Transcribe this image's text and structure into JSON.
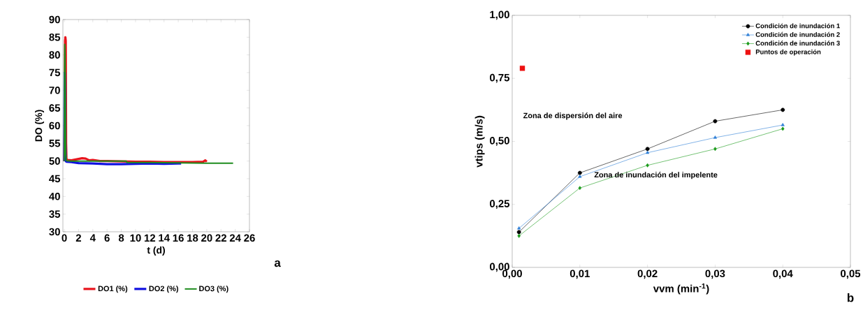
{
  "chart_data": [
    {
      "type": "line",
      "xlabel": "t (d)",
      "ylabel": "DO (%)",
      "xlim": [
        -0.2,
        26
      ],
      "ylim": [
        30,
        90
      ],
      "xticks": [
        0,
        2,
        4,
        6,
        8,
        10,
        12,
        14,
        16,
        18,
        20,
        22,
        24,
        26
      ],
      "yticks": [
        30,
        35,
        40,
        45,
        50,
        55,
        60,
        65,
        70,
        75,
        80,
        85,
        90
      ],
      "legend": "bottom",
      "marker": "none",
      "annotations": [
        "a"
      ],
      "series": [
        {
          "name": "DO1 (%)",
          "color": "#e8141c",
          "x": [
            0,
            0.05,
            0.1,
            0.15,
            0.2,
            0.25,
            0.3,
            0.5,
            1,
            1.5,
            2,
            2.5,
            3,
            3.5,
            4,
            5,
            6,
            8,
            10,
            12,
            14,
            16,
            18,
            19.5,
            19.8,
            20
          ],
          "values": [
            50,
            60,
            84,
            85,
            84,
            55,
            50.5,
            50.3,
            50.2,
            50.4,
            50.6,
            50.8,
            50.7,
            50.2,
            50.3,
            50,
            50,
            49.9,
            49.8,
            49.8,
            49.7,
            49.7,
            49.7,
            49.8,
            50.2,
            49.8
          ]
        },
        {
          "name": "DO2 (%)",
          "color": "#1010e0",
          "x": [
            0,
            0.03,
            0.06,
            0.1,
            0.15,
            0.2,
            0.3,
            1,
            2,
            4,
            6,
            8,
            10,
            12,
            14,
            16,
            16.4
          ],
          "values": [
            50,
            65,
            75,
            70,
            55,
            50,
            49.8,
            49.7,
            49.4,
            49.3,
            49.1,
            49.1,
            49.2,
            49.3,
            49.2,
            49.3,
            49.3
          ]
        },
        {
          "name": "DO3 (%)",
          "color": "#1e8c1e",
          "x": [
            0,
            0.03,
            0.06,
            0.1,
            0.2,
            0.3,
            1,
            4,
            8,
            8.7,
            8.8,
            12,
            16,
            20,
            23.7
          ],
          "values": [
            50,
            75,
            83,
            80,
            52,
            50.1,
            50,
            50,
            50,
            50,
            49.6,
            49.6,
            49.5,
            49.4,
            49.4
          ]
        }
      ]
    },
    {
      "type": "line",
      "xlabel": "vvm (min$^{-1}$)",
      "ylabel": "vtips (m/s)",
      "xlim": [
        0,
        0.05
      ],
      "ylim": [
        0,
        1
      ],
      "xticks": [
        {
          "value": 0,
          "label": "0,00"
        },
        {
          "value": 0.01,
          "label": "0,01"
        },
        {
          "value": 0.02,
          "label": "0,02"
        },
        {
          "value": 0.03,
          "label": "0,03"
        },
        {
          "value": 0.04,
          "label": "0,04"
        },
        {
          "value": 0.05,
          "label": "0,05"
        }
      ],
      "yticks": [
        {
          "value": 0,
          "label": "0,00"
        },
        {
          "value": 0.25,
          "label": "0,25"
        },
        {
          "value": 0.5,
          "label": "0,50"
        },
        {
          "value": 0.75,
          "label": "0,75"
        },
        {
          "value": 1,
          "label": "1,00"
        }
      ],
      "legend": "top right",
      "annotations": [
        "Zona de dispersión del aire",
        "Zona de inundación del impelente",
        "b"
      ],
      "series": [
        {
          "name": "Condición de inundación 1",
          "color": "#000000",
          "marker": "circle",
          "x": [
            0.001,
            0.01,
            0.02,
            0.03,
            0.04
          ],
          "values": [
            0.14,
            0.375,
            0.47,
            0.58,
            0.625
          ]
        },
        {
          "name": "Condición de inundación 2",
          "color": "#2f7fd6",
          "marker": "triangle",
          "x": [
            0.001,
            0.01,
            0.02,
            0.03,
            0.04
          ],
          "values": [
            0.155,
            0.36,
            0.455,
            0.515,
            0.565
          ]
        },
        {
          "name": "Condición de inundación 3",
          "color": "#1a9a1a",
          "marker": "diamond",
          "x": [
            0.001,
            0.01,
            0.02,
            0.03,
            0.04
          ],
          "values": [
            0.125,
            0.315,
            0.405,
            0.47,
            0.55
          ]
        },
        {
          "name": "Puntos de operación",
          "type": "scatter",
          "color": "#ee1111",
          "marker": "square",
          "x": [
            0.0015
          ],
          "values": [
            0.79
          ]
        }
      ]
    }
  ]
}
